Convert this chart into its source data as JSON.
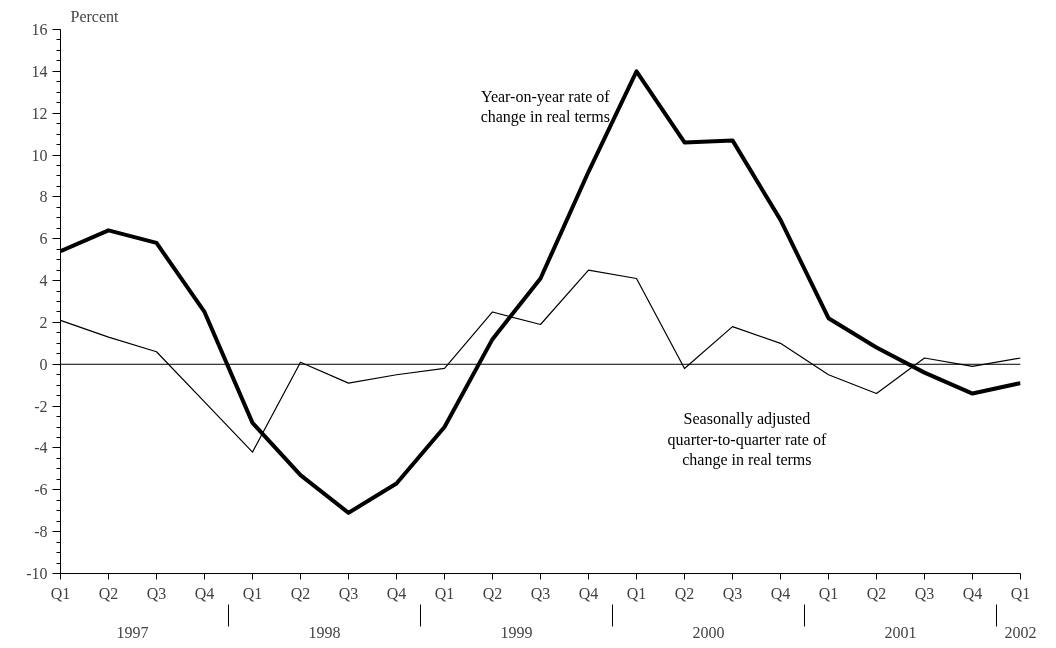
{
  "chart_data": {
    "type": "line",
    "ylabel": "Percent",
    "categories": [
      "Q1",
      "Q2",
      "Q3",
      "Q4",
      "Q1",
      "Q2",
      "Q3",
      "Q4",
      "Q1",
      "Q2",
      "Q3",
      "Q4",
      "Q1",
      "Q2",
      "Q3",
      "Q4",
      "Q1",
      "Q2",
      "Q3",
      "Q4",
      "Q1"
    ],
    "series": [
      {
        "name": "Year-on-year rate of change in real terms",
        "color": "#000000",
        "values": [
          5.4,
          6.4,
          5.8,
          2.5,
          -2.8,
          -5.3,
          -7.1,
          -5.7,
          -3.0,
          1.2,
          4.1,
          9.2,
          14.0,
          10.6,
          10.7,
          6.9,
          2.2,
          0.8,
          -0.4,
          -1.4,
          -0.9
        ]
      },
      {
        "name": "Seasonally adjusted quarter-to-quarter rate of change in real terms",
        "color": "#000000",
        "values": [
          2.1,
          1.3,
          0.6,
          -1.8,
          -4.2,
          0.1,
          -0.9,
          -0.5,
          -0.2,
          2.5,
          1.9,
          4.5,
          4.1,
          -0.2,
          1.8,
          1.0,
          -0.5,
          -1.4,
          0.3,
          -0.1,
          0.3
        ]
      }
    ],
    "annotations": [
      "1997",
      "1998",
      "1999",
      "2000",
      "2001",
      "2002"
    ],
    "ylim": [
      -10,
      16
    ],
    "yticks": [
      -10,
      -8,
      -6,
      -4,
      -2,
      0,
      2,
      4,
      6,
      8,
      10,
      12,
      14,
      16
    ],
    "ref_lines": [
      {
        "axis": "y",
        "value": 0
      }
    ],
    "grid": false,
    "legend": false,
    "marker": "none",
    "line_style": "solid"
  }
}
